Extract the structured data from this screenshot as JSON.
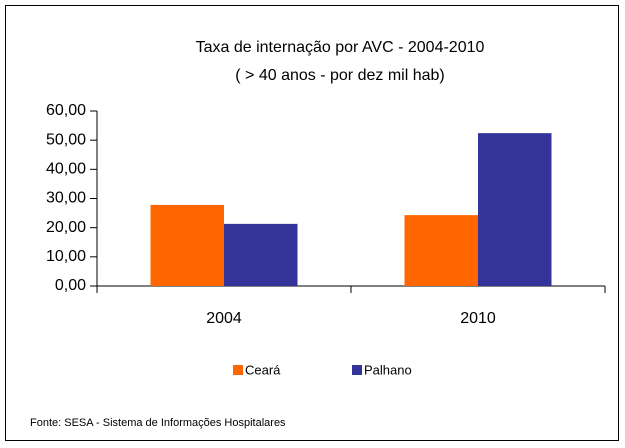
{
  "chart_data": {
    "type": "bar",
    "title": "Taxa de internação por AVC - 2004-2010",
    "subtitle": "( > 40 anos - por dez mil hab)",
    "categories": [
      "2004",
      "2010"
    ],
    "series": [
      {
        "name": "Ceará",
        "color": "#ff6600",
        "values": [
          27.8,
          24.3
        ]
      },
      {
        "name": "Palhano",
        "color": "#333399",
        "values": [
          21.3,
          52.4
        ]
      }
    ],
    "ylim": [
      0,
      60
    ],
    "yticks": [
      {
        "value": 0,
        "label": "0,00"
      },
      {
        "value": 10,
        "label": "10,00"
      },
      {
        "value": 20,
        "label": "20,00"
      },
      {
        "value": 30,
        "label": "30,00"
      },
      {
        "value": 40,
        "label": "40,00"
      },
      {
        "value": 50,
        "label": "50,00"
      },
      {
        "value": 60,
        "label": "60,00"
      }
    ],
    "grid": false,
    "legend": "bottom",
    "source": "Fonte: SESA - Sistema de Informações Hospitalares"
  }
}
